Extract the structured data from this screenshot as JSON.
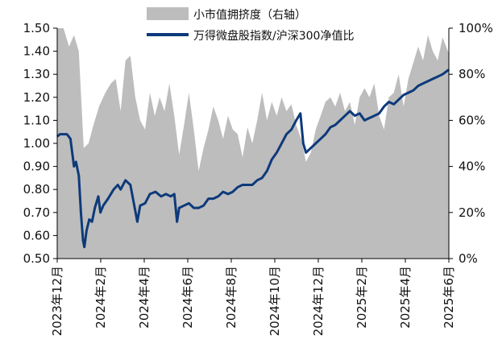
{
  "chart_data": {
    "type": "area",
    "title": "",
    "xlabel": "",
    "legend_position": "top-center",
    "grid": false,
    "colors": {
      "area": "#bdbdbd",
      "line": "#0d3a7a",
      "axis": "#000000",
      "background": "#ffffff"
    },
    "x_ticks": [
      "2023年12月",
      "2024年2月",
      "2024年4月",
      "2024年6月",
      "2024年8月",
      "2024年10月",
      "2024年12月",
      "2025年2月",
      "2025年4月",
      "2025年6月"
    ],
    "x_range": [
      "2023-12-01",
      "2025-06-15"
    ],
    "y_left": {
      "ticks": [
        "0.50",
        "0.60",
        "0.70",
        "0.80",
        "0.90",
        "1.00",
        "1.10",
        "1.20",
        "1.30",
        "1.40",
        "1.50"
      ],
      "min": 0.5,
      "max": 1.5
    },
    "y_right": {
      "ticks": [
        "0%",
        "20%",
        "40%",
        "60%",
        "80%",
        "100%"
      ],
      "min": 0,
      "max": 100
    },
    "series": [
      {
        "name": "小市值拥挤度（右轴）",
        "kind": "area",
        "axis": "right",
        "points": [
          [
            "2023-12-01",
            100
          ],
          [
            "2023-12-10",
            100
          ],
          [
            "2023-12-18",
            92
          ],
          [
            "2023-12-25",
            97
          ],
          [
            "2024-01-01",
            90
          ],
          [
            "2024-01-08",
            48
          ],
          [
            "2024-01-15",
            50
          ],
          [
            "2024-01-22",
            58
          ],
          [
            "2024-01-30",
            66
          ],
          [
            "2024-02-08",
            72
          ],
          [
            "2024-02-16",
            76
          ],
          [
            "2024-02-23",
            78
          ],
          [
            "2024-03-01",
            64
          ],
          [
            "2024-03-08",
            86
          ],
          [
            "2024-03-15",
            88
          ],
          [
            "2024-03-22",
            70
          ],
          [
            "2024-03-29",
            60
          ],
          [
            "2024-04-05",
            56
          ],
          [
            "2024-04-12",
            72
          ],
          [
            "2024-04-19",
            62
          ],
          [
            "2024-04-26",
            70
          ],
          [
            "2024-05-03",
            64
          ],
          [
            "2024-05-10",
            76
          ],
          [
            "2024-05-17",
            62
          ],
          [
            "2024-05-24",
            45
          ],
          [
            "2024-05-31",
            58
          ],
          [
            "2024-06-07",
            72
          ],
          [
            "2024-06-14",
            56
          ],
          [
            "2024-06-21",
            38
          ],
          [
            "2024-06-28",
            48
          ],
          [
            "2024-07-05",
            56
          ],
          [
            "2024-07-12",
            66
          ],
          [
            "2024-07-19",
            60
          ],
          [
            "2024-07-26",
            52
          ],
          [
            "2024-08-02",
            62
          ],
          [
            "2024-08-09",
            56
          ],
          [
            "2024-08-16",
            54
          ],
          [
            "2024-08-23",
            44
          ],
          [
            "2024-08-30",
            57
          ],
          [
            "2024-09-06",
            50
          ],
          [
            "2024-09-13",
            60
          ],
          [
            "2024-09-20",
            72
          ],
          [
            "2024-09-27",
            60
          ],
          [
            "2024-10-04",
            68
          ],
          [
            "2024-10-11",
            62
          ],
          [
            "2024-10-18",
            70
          ],
          [
            "2024-10-25",
            64
          ],
          [
            "2024-11-01",
            67
          ],
          [
            "2024-11-08",
            58
          ],
          [
            "2024-11-15",
            52
          ],
          [
            "2024-11-22",
            42
          ],
          [
            "2024-11-29",
            46
          ],
          [
            "2024-12-06",
            56
          ],
          [
            "2024-12-13",
            62
          ],
          [
            "2024-12-20",
            68
          ],
          [
            "2024-12-27",
            70
          ],
          [
            "2025-01-03",
            66
          ],
          [
            "2025-01-10",
            72
          ],
          [
            "2025-01-17",
            64
          ],
          [
            "2025-01-24",
            68
          ],
          [
            "2025-01-31",
            58
          ],
          [
            "2025-02-07",
            70
          ],
          [
            "2025-02-14",
            74
          ],
          [
            "2025-02-21",
            70
          ],
          [
            "2025-02-28",
            76
          ],
          [
            "2025-03-07",
            62
          ],
          [
            "2025-03-14",
            56
          ],
          [
            "2025-03-21",
            70
          ],
          [
            "2025-03-28",
            72
          ],
          [
            "2025-04-04",
            80
          ],
          [
            "2025-04-11",
            66
          ],
          [
            "2025-04-18",
            78
          ],
          [
            "2025-04-25",
            85
          ],
          [
            "2025-05-02",
            92
          ],
          [
            "2025-05-09",
            86
          ],
          [
            "2025-05-16",
            97
          ],
          [
            "2025-05-23",
            90
          ],
          [
            "2025-05-30",
            86
          ],
          [
            "2025-06-06",
            96
          ],
          [
            "2025-06-15",
            89
          ]
        ]
      },
      {
        "name": "万得微盘股指数/沪深300净值比",
        "kind": "line",
        "axis": "left",
        "points": [
          [
            "2023-12-01",
            1.03
          ],
          [
            "2023-12-05",
            1.04
          ],
          [
            "2023-12-10",
            1.04
          ],
          [
            "2023-12-15",
            1.04
          ],
          [
            "2023-12-20",
            1.02
          ],
          [
            "2023-12-25",
            0.9
          ],
          [
            "2023-12-28",
            0.92
          ],
          [
            "2024-01-01",
            0.86
          ],
          [
            "2024-01-04",
            0.7
          ],
          [
            "2024-01-07",
            0.58
          ],
          [
            "2024-01-09",
            0.55
          ],
          [
            "2024-01-12",
            0.62
          ],
          [
            "2024-01-16",
            0.67
          ],
          [
            "2024-01-20",
            0.66
          ],
          [
            "2024-01-24",
            0.72
          ],
          [
            "2024-01-29",
            0.77
          ],
          [
            "2024-02-01",
            0.7
          ],
          [
            "2024-02-05",
            0.73
          ],
          [
            "2024-02-12",
            0.76
          ],
          [
            "2024-02-20",
            0.8
          ],
          [
            "2024-02-26",
            0.82
          ],
          [
            "2024-03-01",
            0.8
          ],
          [
            "2024-03-08",
            0.84
          ],
          [
            "2024-03-15",
            0.82
          ],
          [
            "2024-03-20",
            0.74
          ],
          [
            "2024-03-25",
            0.66
          ],
          [
            "2024-03-29",
            0.73
          ],
          [
            "2024-04-05",
            0.74
          ],
          [
            "2024-04-12",
            0.78
          ],
          [
            "2024-04-20",
            0.79
          ],
          [
            "2024-04-28",
            0.77
          ],
          [
            "2024-05-05",
            0.78
          ],
          [
            "2024-05-12",
            0.77
          ],
          [
            "2024-05-17",
            0.78
          ],
          [
            "2024-05-21",
            0.66
          ],
          [
            "2024-05-24",
            0.72
          ],
          [
            "2024-05-31",
            0.73
          ],
          [
            "2024-06-07",
            0.74
          ],
          [
            "2024-06-14",
            0.72
          ],
          [
            "2024-06-21",
            0.72
          ],
          [
            "2024-06-28",
            0.73
          ],
          [
            "2024-07-05",
            0.76
          ],
          [
            "2024-07-12",
            0.76
          ],
          [
            "2024-07-19",
            0.77
          ],
          [
            "2024-07-26",
            0.79
          ],
          [
            "2024-08-02",
            0.78
          ],
          [
            "2024-08-09",
            0.79
          ],
          [
            "2024-08-16",
            0.81
          ],
          [
            "2024-08-23",
            0.82
          ],
          [
            "2024-08-30",
            0.82
          ],
          [
            "2024-09-06",
            0.82
          ],
          [
            "2024-09-13",
            0.84
          ],
          [
            "2024-09-20",
            0.85
          ],
          [
            "2024-09-27",
            0.88
          ],
          [
            "2024-10-04",
            0.93
          ],
          [
            "2024-10-11",
            0.96
          ],
          [
            "2024-10-18",
            1.0
          ],
          [
            "2024-10-25",
            1.04
          ],
          [
            "2024-11-01",
            1.06
          ],
          [
            "2024-11-08",
            1.1
          ],
          [
            "2024-11-14",
            1.13
          ],
          [
            "2024-11-18",
            1.0
          ],
          [
            "2024-11-22",
            0.96
          ],
          [
            "2024-11-29",
            0.98
          ],
          [
            "2024-12-06",
            1.0
          ],
          [
            "2024-12-13",
            1.02
          ],
          [
            "2024-12-20",
            1.04
          ],
          [
            "2024-12-27",
            1.07
          ],
          [
            "2025-01-03",
            1.08
          ],
          [
            "2025-01-10",
            1.1
          ],
          [
            "2025-01-17",
            1.12
          ],
          [
            "2025-01-24",
            1.14
          ],
          [
            "2025-01-31",
            1.12
          ],
          [
            "2025-02-07",
            1.13
          ],
          [
            "2025-02-14",
            1.1
          ],
          [
            "2025-02-21",
            1.11
          ],
          [
            "2025-02-28",
            1.12
          ],
          [
            "2025-03-07",
            1.13
          ],
          [
            "2025-03-14",
            1.16
          ],
          [
            "2025-03-21",
            1.18
          ],
          [
            "2025-03-28",
            1.17
          ],
          [
            "2025-04-04",
            1.19
          ],
          [
            "2025-04-11",
            1.21
          ],
          [
            "2025-04-18",
            1.22
          ],
          [
            "2025-04-25",
            1.23
          ],
          [
            "2025-05-02",
            1.25
          ],
          [
            "2025-05-09",
            1.26
          ],
          [
            "2025-05-16",
            1.27
          ],
          [
            "2025-05-23",
            1.28
          ],
          [
            "2025-05-30",
            1.29
          ],
          [
            "2025-06-06",
            1.3
          ],
          [
            "2025-06-15",
            1.32
          ]
        ]
      }
    ]
  }
}
